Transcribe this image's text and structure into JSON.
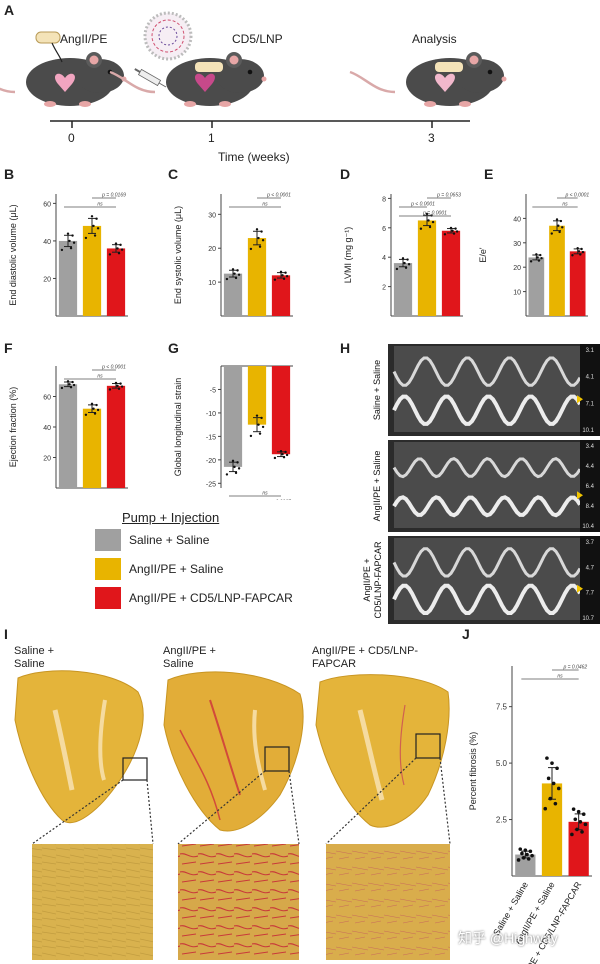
{
  "panel_labels": {
    "A": "A",
    "B": "B",
    "C": "C",
    "D": "D",
    "E": "E",
    "F": "F",
    "G": "G",
    "H": "H",
    "I": "I",
    "J": "J"
  },
  "colors": {
    "saline": "#a0a0a0",
    "angii": "#e8b400",
    "fapcar": "#e0161b"
  },
  "timeline": {
    "steps": [
      {
        "label": "AngII/PE",
        "tick": "0"
      },
      {
        "label": "CD5/LNP",
        "tick": "1"
      },
      {
        "label": "Analysis",
        "tick": "3"
      }
    ],
    "axis_title": "Time (weeks)"
  },
  "legend": {
    "title": "Pump + Injection",
    "items": [
      "Saline + Saline",
      "AngII/PE + Saline",
      "AngII/PE + CD5/LNP-FAPCAR"
    ]
  },
  "echo": {
    "rows": [
      {
        "label": "Saline + Saline",
        "scale": [
          "3.1",
          "4.1",
          "7.1",
          "10.1"
        ]
      },
      {
        "label": "AngII/PE + Saline",
        "scale": [
          "3.4",
          "4.4",
          "6.4",
          "8.4",
          "10.4"
        ]
      },
      {
        "label": "AngII/PE + CD5/LNP-FAPCAR",
        "scale": [
          "3.7",
          "4.7",
          "7.7",
          "10.7"
        ]
      }
    ]
  },
  "histology": {
    "titles": [
      "Saline + Saline",
      "AngII/PE + Saline",
      "AngII/PE + CD5/LNP-FAPCAR"
    ]
  },
  "watermark": "知乎 @Highway",
  "chart_data": [
    {
      "id": "B",
      "type": "bar",
      "categories": [
        "Saline + Saline",
        "AngII/PE + Saline",
        "AngII/PE + CD5/LNP-FAPCAR"
      ],
      "values": [
        40,
        48,
        36
      ],
      "errors": [
        3,
        4,
        2
      ],
      "ylabel": "End diastolic volume (μL)",
      "ylim": [
        0,
        65
      ],
      "yticks": [
        20,
        40,
        60
      ],
      "annotations": [
        {
          "text": "ns",
          "from": 0,
          "to": 2
        },
        {
          "text": "p = 0.0169",
          "from": 1,
          "to": 2
        }
      ]
    },
    {
      "id": "C",
      "type": "bar",
      "categories": [
        "Saline + Saline",
        "AngII/PE + Saline",
        "AngII/PE + CD5/LNP-FAPCAR"
      ],
      "values": [
        12.5,
        23,
        12
      ],
      "errors": [
        1,
        2,
        0.8
      ],
      "ylabel": "End systolic volume (μL)",
      "ylim": [
        0,
        36
      ],
      "yticks": [
        10,
        20,
        30
      ],
      "annotations": [
        {
          "text": "ns",
          "from": 0,
          "to": 2
        },
        {
          "text": "p < 0.0001",
          "from": 1,
          "to": 2
        }
      ]
    },
    {
      "id": "D",
      "type": "bar",
      "categories": [
        "Saline + Saline",
        "AngII/PE + Saline",
        "AngII/PE + CD5/LNP-FAPCAR"
      ],
      "values": [
        3.6,
        6.5,
        5.8
      ],
      "errors": [
        0.25,
        0.35,
        0.15
      ],
      "ylabel": "LVMI (mg g⁻¹)",
      "ylim": [
        0,
        8.3
      ],
      "yticks": [
        2,
        4,
        6,
        8
      ],
      "annotations": [
        {
          "text": "p = 0.0001",
          "from": 0,
          "to": 2
        },
        {
          "text": "p < 0.0001",
          "from": 0,
          "to": 1
        },
        {
          "text": "p = 0.0653",
          "from": 1,
          "to": 2
        }
      ]
    },
    {
      "id": "E",
      "type": "bar",
      "categories": [
        "Saline + Saline",
        "AngII/PE + Saline",
        "AngII/PE + CD5/LNP-FAPCAR"
      ],
      "values": [
        24,
        37,
        26.5
      ],
      "errors": [
        1,
        2,
        1
      ],
      "ylabel": "E/e'",
      "ylim": [
        0,
        50
      ],
      "yticks": [
        10,
        20,
        30,
        40
      ],
      "annotations": [
        {
          "text": "ns",
          "from": 0,
          "to": 2
        },
        {
          "text": "p < 0.0001",
          "from": 1,
          "to": 2
        }
      ]
    },
    {
      "id": "F",
      "type": "bar",
      "categories": [
        "Saline + Saline",
        "AngII/PE + Saline",
        "AngII/PE + CD5/LNP-FAPCAR"
      ],
      "values": [
        68,
        52,
        67
      ],
      "errors": [
        1.5,
        2.5,
        1.5
      ],
      "ylabel": "Ejection fraction (%)",
      "ylim": [
        0,
        80
      ],
      "yticks": [
        20,
        40,
        60
      ],
      "annotations": [
        {
          "text": "ns",
          "from": 0,
          "to": 2
        },
        {
          "text": "p < 0.0001",
          "from": 1,
          "to": 2
        }
      ]
    },
    {
      "id": "G",
      "type": "bar",
      "categories": [
        "Saline + Saline",
        "AngII/PE + Saline",
        "AngII/PE + CD5/LNP-FAPCAR"
      ],
      "values": [
        -21.5,
        -12.5,
        -18.8
      ],
      "errors": [
        1,
        1.5,
        0.5
      ],
      "ylabel": "Global longitudinal strain",
      "ylim": [
        -26,
        0
      ],
      "yticks": [
        -5,
        -10,
        -15,
        -20,
        -25
      ],
      "annotations": [
        {
          "text": "ns",
          "from": 0,
          "to": 2
        },
        {
          "text": "p = 0.0007",
          "from": 1,
          "to": 2
        }
      ]
    },
    {
      "id": "J",
      "type": "bar",
      "categories": [
        "Saline + Saline",
        "AngII/PE + Saline",
        "AngII/PE + CD5/LNP-FAPCAR"
      ],
      "values": [
        0.95,
        4.1,
        2.4
      ],
      "errors": [
        0.15,
        0.7,
        0.35
      ],
      "ylabel": "Percent fibrosis (%)",
      "ylim": [
        0,
        9.3
      ],
      "yticks": [
        2.5,
        5.0,
        7.5
      ],
      "annotations": [
        {
          "text": "ns",
          "from": 0,
          "to": 2
        },
        {
          "text": "p = 0.0462",
          "from": 1,
          "to": 2
        }
      ]
    }
  ]
}
